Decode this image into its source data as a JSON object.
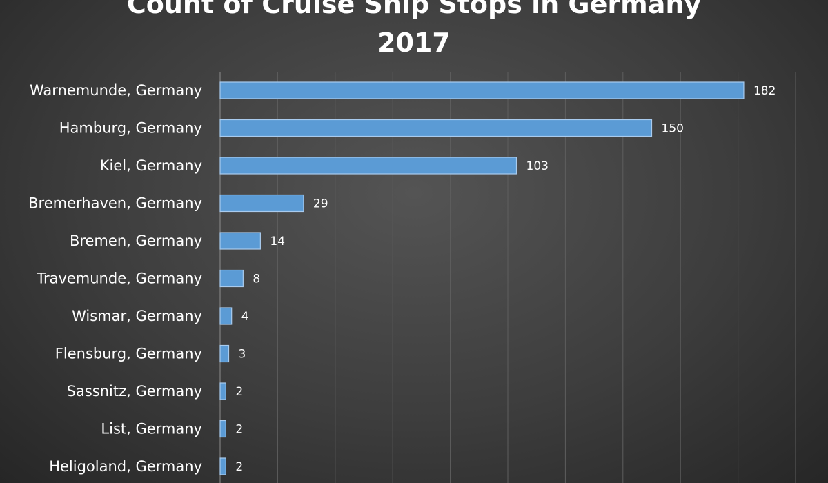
{
  "chart_data": {
    "type": "bar",
    "orientation": "horizontal",
    "title_lines": [
      "Count of Cruise Ship Stops in Germany",
      "2017"
    ],
    "categories": [
      "Warnemunde, Germany",
      "Hamburg, Germany",
      "Kiel, Germany",
      "Bremerhaven, Germany",
      "Bremen, Germany",
      "Travemunde, Germany",
      "Wismar, Germany",
      "Flensburg, Germany",
      "Sassnitz, Germany",
      "List, Germany",
      "Heligoland, Germany"
    ],
    "values": [
      182,
      150,
      103,
      29,
      14,
      8,
      4,
      3,
      2,
      2,
      2
    ],
    "xlim": [
      0,
      200
    ],
    "grid": true,
    "legend": "none",
    "bar_color": "#5b9bd5"
  }
}
